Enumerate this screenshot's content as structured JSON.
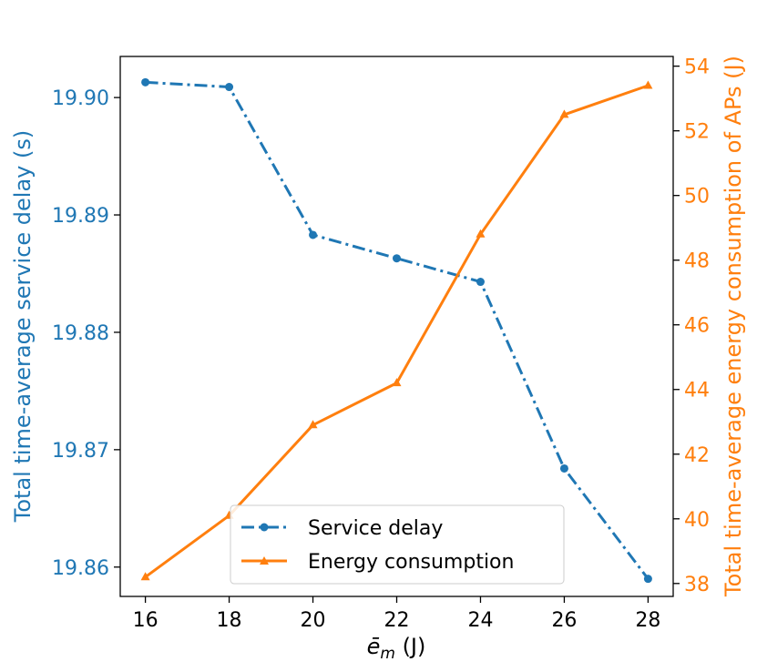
{
  "chart_data": {
    "type": "line",
    "x": [
      16,
      18,
      20,
      22,
      24,
      26,
      28
    ],
    "xticks": [
      16,
      18,
      20,
      22,
      24,
      26,
      28
    ],
    "xlim": [
      15.4,
      28.6
    ],
    "xlabel_main": "ē",
    "xlabel_sub": "m",
    "xlabel_unit": " (J)",
    "y_left": {
      "label": "Total time-average service delay (s)",
      "ylim": [
        19.8575,
        19.9035
      ],
      "ticks": [
        19.86,
        19.87,
        19.88,
        19.89,
        19.9
      ],
      "tick_labels": [
        "19.86",
        "19.87",
        "19.88",
        "19.89",
        "19.90"
      ],
      "color": "#1f77b4"
    },
    "y_right": {
      "label": "Total time-average energy consumption of APs (J)",
      "ylim": [
        37.6,
        54.3
      ],
      "ticks": [
        38,
        40,
        42,
        44,
        46,
        48,
        50,
        52,
        54
      ],
      "tick_labels": [
        "38",
        "40",
        "42",
        "44",
        "46",
        "48",
        "50",
        "52",
        "54"
      ],
      "color": "#ff7f0e"
    },
    "series": [
      {
        "name": "Service delay",
        "axis": "left",
        "color": "#1f77b4",
        "marker": "circle",
        "linestyle": "dashdot",
        "values": [
          19.9013,
          19.9009,
          19.8883,
          19.8863,
          19.8843,
          19.8684,
          19.859
        ]
      },
      {
        "name": "Energy consumption",
        "axis": "right",
        "color": "#ff7f0e",
        "marker": "triangle",
        "linestyle": "solid",
        "values": [
          38.2,
          40.1,
          42.9,
          44.2,
          48.8,
          52.5,
          53.4
        ]
      }
    ],
    "legend_position": "lower-center"
  }
}
